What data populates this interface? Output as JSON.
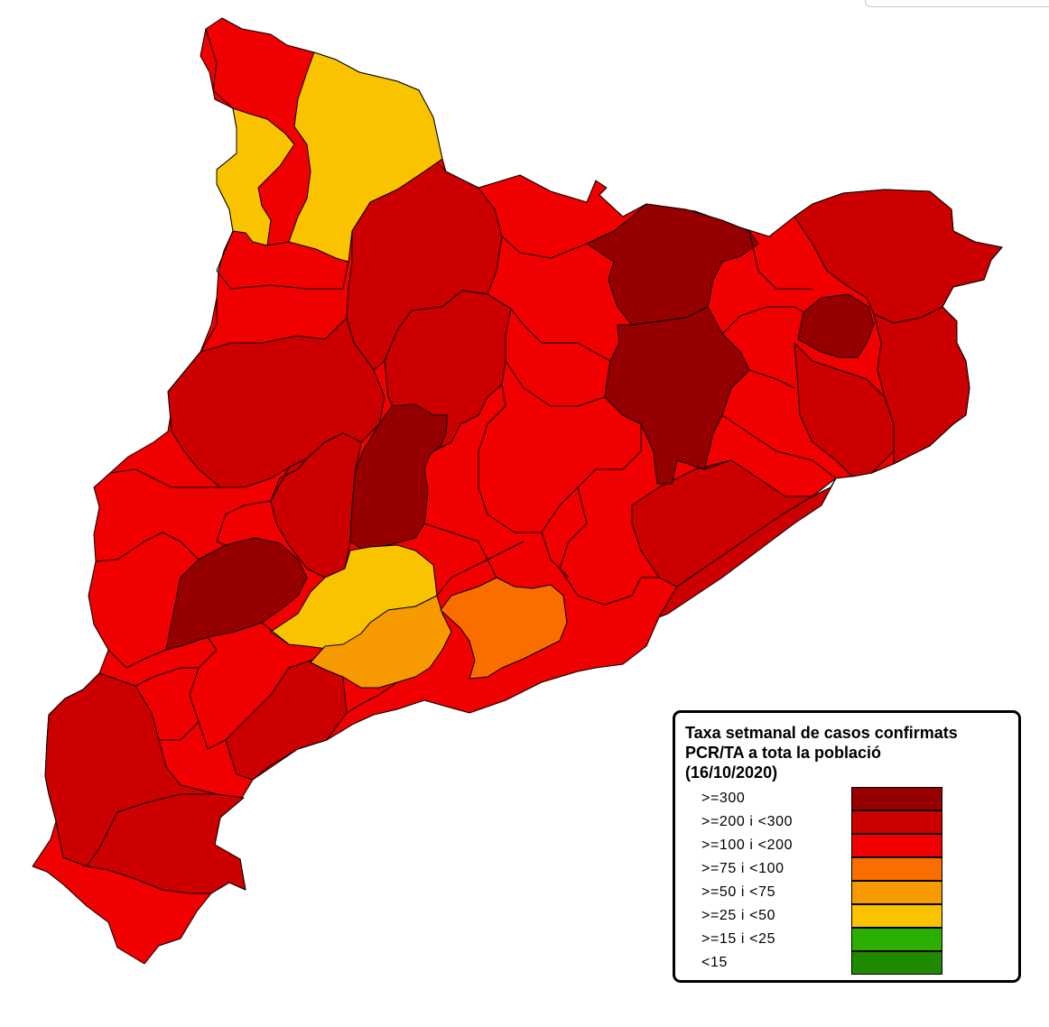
{
  "legend": {
    "title_line1": "Taxa setmanal de casos confirmats",
    "title_line2": "PCR/TA a tota la població",
    "title_line3": "(16/10/2020)",
    "items": [
      {
        "label": ">=300",
        "color": "#960000"
      },
      {
        "label": ">=200 i <300",
        "color": "#cc0000"
      },
      {
        "label": ">=100 i <200",
        "color": "#f00000"
      },
      {
        "label": ">=75 i <100",
        "color": "#fa6e00"
      },
      {
        "label": ">=50 i <75",
        "color": "#f79900"
      },
      {
        "label": ">=25 i <50",
        "color": "#fac300"
      },
      {
        "label": ">=15 i <25",
        "color": "#2bb000"
      },
      {
        "label": "<15",
        "color": "#1f8a00"
      }
    ]
  },
  "map": {
    "region": "Catalunya",
    "areas_shown": 47
  }
}
